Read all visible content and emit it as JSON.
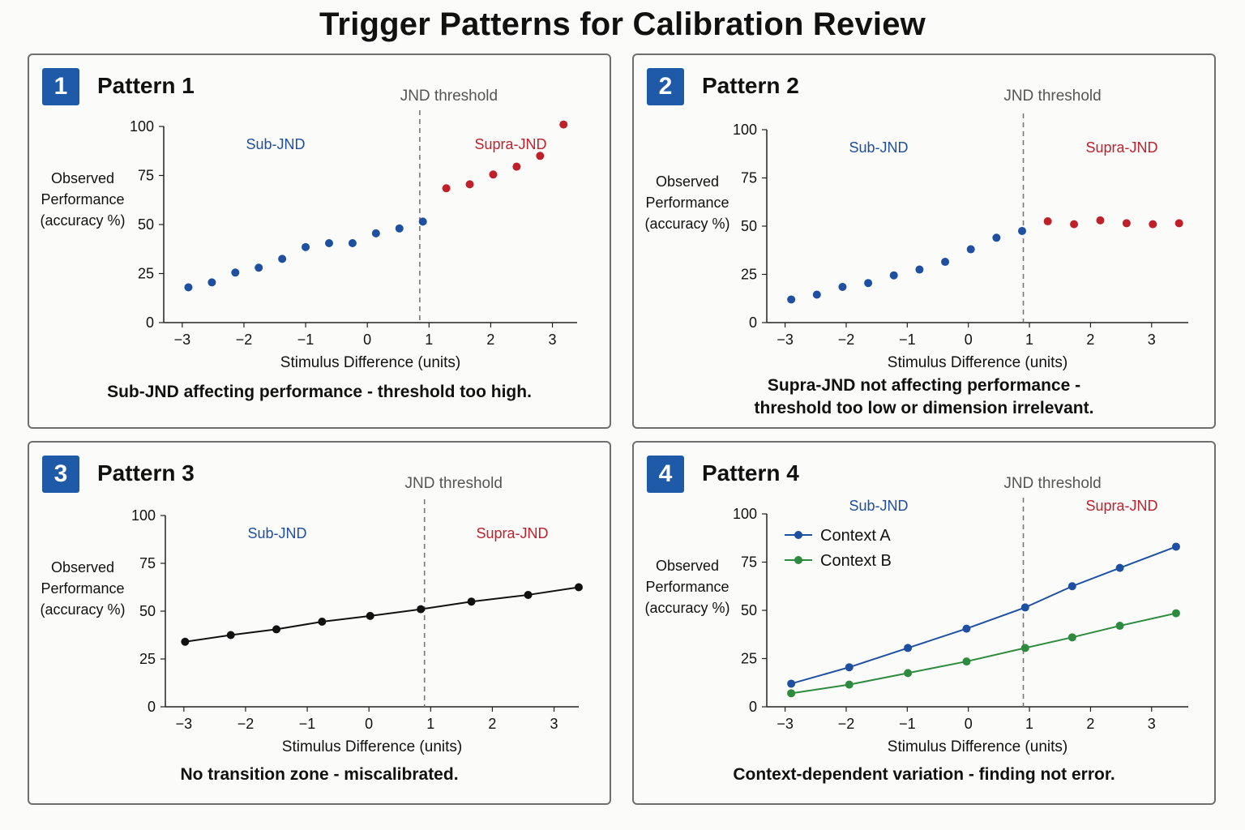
{
  "title": "Trigger Patterns for Calibration Review",
  "colors": {
    "sub": "#1e4fa0",
    "supra": "#c0202a",
    "badge": "#1e5aa8",
    "contextA": "#1e4fa0",
    "contextB": "#2e8a3e",
    "line": "#111111"
  },
  "panels": [
    {
      "badge": "1",
      "title": "Pattern 1",
      "caption_lines": [
        "Sub-JND affecting performance - threshold too high."
      ],
      "chart_data": {
        "type": "scatter",
        "ylabel_lines": [
          "Observed",
          "Performance",
          "(accuracy %)"
        ],
        "xlabel": "Stimulus Difference (units)",
        "xticks": [
          -3,
          -2,
          -1,
          0,
          1,
          2,
          3
        ],
        "yticks": [
          0,
          25,
          50,
          75,
          100
        ],
        "xlim": [
          -3.3,
          3.4
        ],
        "ylim": [
          0,
          100
        ],
        "threshold_x": 0.85,
        "threshold_label": "JND threshold",
        "zone_labels": {
          "sub": "Sub-JND",
          "supra": "Supra-JND"
        },
        "series": [
          {
            "zone": "sub",
            "x": [
              -2.9,
              -2.52,
              -2.14,
              -1.76,
              -1.38,
              -1.0,
              -0.62,
              -0.24,
              0.14,
              0.52,
              0.9
            ],
            "y": [
              18,
              20.5,
              25.5,
              28,
              32.5,
              38.5,
              40.5,
              40.5,
              45.5,
              48,
              51.5
            ]
          },
          {
            "zone": "supra",
            "x": [
              1.28,
              1.66,
              2.04,
              2.42,
              2.8,
              3.18
            ],
            "y": [
              68.5,
              70.5,
              75.5,
              79.5,
              85,
              101
            ]
          }
        ]
      }
    },
    {
      "badge": "2",
      "title": "Pattern 2",
      "caption_lines": [
        "Supra-JND not affecting performance -",
        "threshold too low or dimension irrelevant."
      ],
      "chart_data": {
        "type": "scatter",
        "ylabel_lines": [
          "Observed",
          "Performance",
          "(accuracy %)"
        ],
        "xlabel": "Stimulus Difference (units)",
        "xticks": [
          -3,
          -2,
          -1,
          0,
          1,
          2,
          3
        ],
        "yticks": [
          0,
          25,
          50,
          75,
          100
        ],
        "xlim": [
          -3.3,
          3.6
        ],
        "ylim": [
          0,
          100
        ],
        "threshold_x": 0.9,
        "threshold_label": "JND threshold",
        "zone_labels": {
          "sub": "Sub-JND",
          "supra": "Supra-JND"
        },
        "series": [
          {
            "zone": "sub",
            "x": [
              -2.9,
              -2.48,
              -2.06,
              -1.64,
              -1.22,
              -0.8,
              -0.38,
              0.04,
              0.46,
              0.88
            ],
            "y": [
              12,
              14.5,
              18.5,
              20.5,
              24.5,
              27.5,
              31.5,
              38,
              44,
              47.5
            ]
          },
          {
            "zone": "supra",
            "x": [
              1.3,
              1.73,
              2.16,
              2.59,
              3.02,
              3.45
            ],
            "y": [
              52.5,
              51,
              53,
              51.5,
              51,
              51.5
            ]
          }
        ]
      }
    },
    {
      "badge": "3",
      "title": "Pattern 3",
      "caption_lines": [
        "No transition zone - miscalibrated."
      ],
      "chart_data": {
        "type": "line",
        "ylabel_lines": [
          "Observed",
          "Performance",
          "(accuracy %)"
        ],
        "xlabel": "Stimulus Difference (units)",
        "xticks": [
          -3,
          -2,
          -1,
          0,
          1,
          2,
          3
        ],
        "yticks": [
          0,
          25,
          50,
          75,
          100
        ],
        "xlim": [
          -3.3,
          3.4
        ],
        "ylim": [
          0,
          100
        ],
        "threshold_x": 0.9,
        "threshold_label": "JND threshold",
        "zone_labels": {
          "sub": "Sub-JND",
          "supra": "Supra-JND"
        },
        "series": [
          {
            "zone": "line",
            "x": [
              -2.98,
              -2.24,
              -1.5,
              -0.76,
              0.02,
              0.84,
              1.66,
              2.58,
              3.4
            ],
            "y": [
              34,
              37.5,
              40.5,
              44.5,
              47.5,
              51,
              55,
              58.5,
              62.5
            ]
          }
        ]
      }
    },
    {
      "badge": "4",
      "title": "Pattern 4",
      "caption_lines": [
        "Context-dependent variation - finding not error."
      ],
      "chart_data": {
        "type": "line",
        "ylabel_lines": [
          "Observed",
          "Performance",
          "(accuracy %)"
        ],
        "xlabel": "Stimulus Difference (units)",
        "xticks": [
          -3,
          -2,
          -1,
          0,
          1,
          2,
          3
        ],
        "yticks": [
          0,
          25,
          50,
          75,
          100
        ],
        "xlim": [
          -3.3,
          3.6
        ],
        "ylim": [
          0,
          100
        ],
        "threshold_x": 0.9,
        "threshold_label": "JND threshold",
        "zone_labels": {
          "sub": "Sub-JND",
          "supra": "Supra-JND"
        },
        "legend": "top-left",
        "series": [
          {
            "name": "Context A",
            "zone": "contextA",
            "x": [
              -2.9,
              -1.95,
              -0.99,
              -0.03,
              0.93,
              1.7,
              2.48,
              3.4
            ],
            "y": [
              12,
              20.5,
              30.5,
              40.5,
              51.5,
              62.5,
              72,
              83
            ]
          },
          {
            "name": "Context B",
            "zone": "contextB",
            "x": [
              -2.9,
              -1.95,
              -0.99,
              -0.03,
              0.93,
              1.7,
              2.48,
              3.4
            ],
            "y": [
              7,
              11.5,
              17.5,
              23.5,
              30.5,
              36,
              42,
              48.5
            ]
          }
        ]
      }
    }
  ]
}
